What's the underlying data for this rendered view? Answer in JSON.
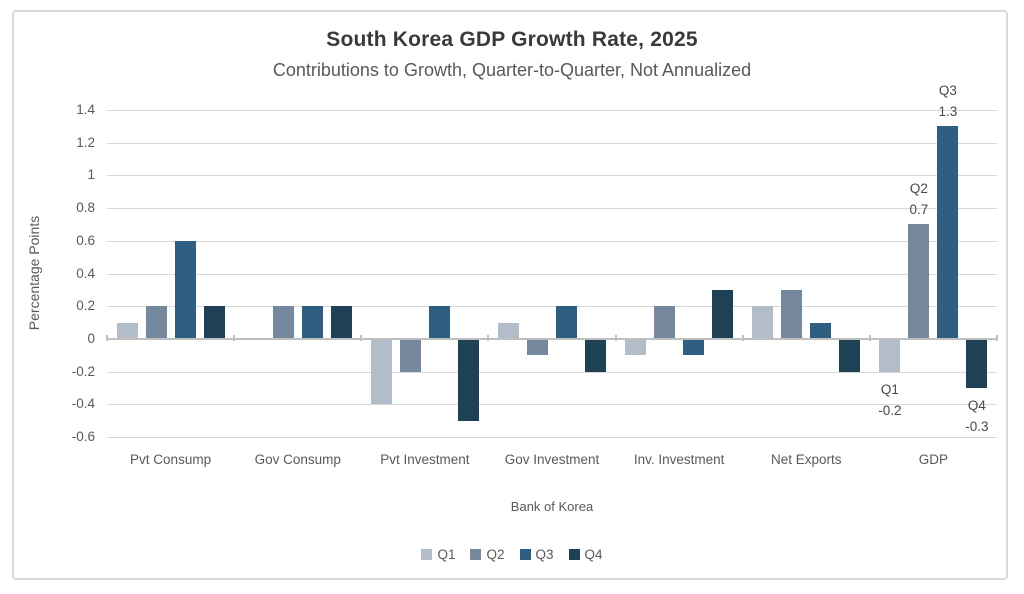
{
  "chart_data": {
    "type": "bar",
    "title": "South Korea GDP Growth Rate, 2025",
    "subtitle": "Contributions to Growth, Quarter-to-Quarter, Not Annualized",
    "ylabel": "Percentage Points",
    "xlabel": "Bank of Korea",
    "ylim": [
      -0.6,
      1.4
    ],
    "yticks": [
      1.4,
      1.2,
      1,
      0.8,
      0.6,
      0.4,
      0.2,
      0,
      -0.2,
      -0.4,
      -0.6
    ],
    "grid": true,
    "legend_position": "bottom",
    "categories": [
      "Pvt Consump",
      "Gov Consump",
      "Pvt Investment",
      "Gov Investment",
      "Inv. Investment",
      "Net Exports",
      "GDP"
    ],
    "series": [
      {
        "name": "Q1",
        "color": "#b3bdca",
        "values": [
          0.1,
          0,
          -0.4,
          0.1,
          -0.1,
          0.2,
          -0.2
        ]
      },
      {
        "name": "Q2",
        "color": "#76889d",
        "values": [
          0.2,
          0.2,
          -0.2,
          -0.1,
          0.2,
          0.3,
          0.7
        ]
      },
      {
        "name": "Q3",
        "color": "#2e5f82",
        "values": [
          0.6,
          0.2,
          0.2,
          0.2,
          -0.1,
          0.1,
          1.3
        ]
      },
      {
        "name": "Q4",
        "color": "#1f4155",
        "values": [
          0.2,
          0.2,
          -0.5,
          -0.2,
          0.3,
          -0.2,
          -0.3
        ]
      }
    ],
    "data_labels": [
      {
        "category": "GDP",
        "series": "Q1",
        "lines": "Q1\n-0.2",
        "position": "below"
      },
      {
        "category": "GDP",
        "series": "Q2",
        "lines": "Q2\n0.7",
        "position": "above"
      },
      {
        "category": "GDP",
        "series": "Q3",
        "lines": "Q3\n1.3",
        "position": "above"
      },
      {
        "category": "GDP",
        "series": "Q4",
        "lines": "Q4\n-0.3",
        "position": "below"
      }
    ]
  },
  "colors": {
    "background": "#ffffff",
    "frame_border": "#d9d9d9",
    "gridline": "#d9d9d9",
    "axis": "#bfbfbf",
    "title_text": "#3a3a3a",
    "secondary_text": "#595959",
    "data_label_text": "#494949"
  }
}
